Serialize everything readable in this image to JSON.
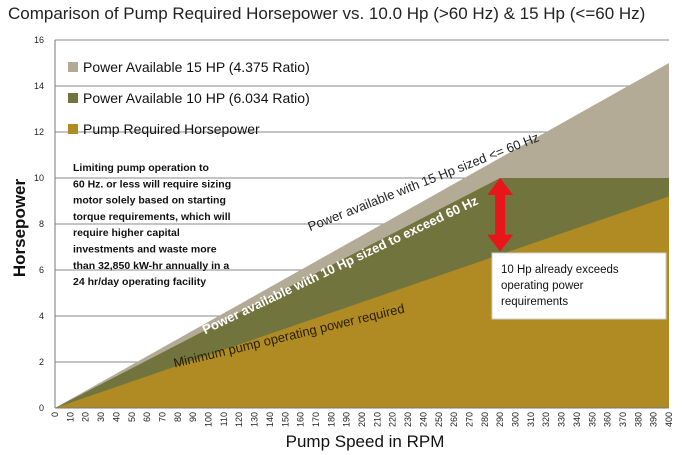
{
  "chart_data": {
    "type": "area",
    "title": "Comparison of Pump Required Horsepower vs. 10.0 Hp (>60 Hz) & 15 Hp (<=60 Hz)",
    "xlabel": "Pump Speed in RPM",
    "ylabel": "Horsepower",
    "x": [
      0,
      10,
      20,
      30,
      40,
      50,
      60,
      70,
      80,
      90,
      100,
      110,
      120,
      130,
      140,
      150,
      160,
      170,
      180,
      190,
      200,
      210,
      220,
      230,
      240,
      250,
      260,
      270,
      280,
      290,
      300,
      310,
      320,
      330,
      340,
      350,
      360,
      370,
      380,
      390,
      400
    ],
    "xlim": [
      0,
      400
    ],
    "ylim": [
      0,
      16
    ],
    "yticks": [
      0,
      2,
      4,
      6,
      8,
      10,
      12,
      14,
      16
    ],
    "grid": true,
    "legend_position": "top-left",
    "series": [
      {
        "name": "Power Available 15 HP (4.375 Ratio)",
        "color": "#b4ab97",
        "points": [
          [
            0,
            0
          ],
          [
            400,
            15
          ]
        ]
      },
      {
        "name": "Power Available 10 HP (6.034 Ratio)",
        "color": "#72743e",
        "points": [
          [
            0,
            0
          ],
          [
            290,
            10
          ],
          [
            400,
            10
          ]
        ]
      },
      {
        "name": "Pump Required Horsepower",
        "color": "#b08b23",
        "points": [
          [
            0,
            0
          ],
          [
            400,
            9.2
          ]
        ]
      }
    ],
    "annotations": {
      "note": [
        "Limiting pump operation to",
        "60 Hz. or less will require sizing",
        "motor solely based on starting",
        "torque requirements, which will",
        "require higher capital",
        "investments and waste more",
        "than 32,850 kW-hr annually in a",
        "24 hr/day operating facility"
      ],
      "callout": [
        "10 Hp already exceeds",
        "operating power",
        "requirements"
      ],
      "band_15hp": "Power available with 15 Hp sized  <= 60 Hz",
      "band_10hp": "Power available with 10 Hp sized to exceed 60 Hz",
      "band_required": "Minimum pump operating power required"
    },
    "arrow": {
      "x": 290,
      "y_from": 10,
      "y_to": 6.8,
      "color": "#e8161b"
    }
  }
}
